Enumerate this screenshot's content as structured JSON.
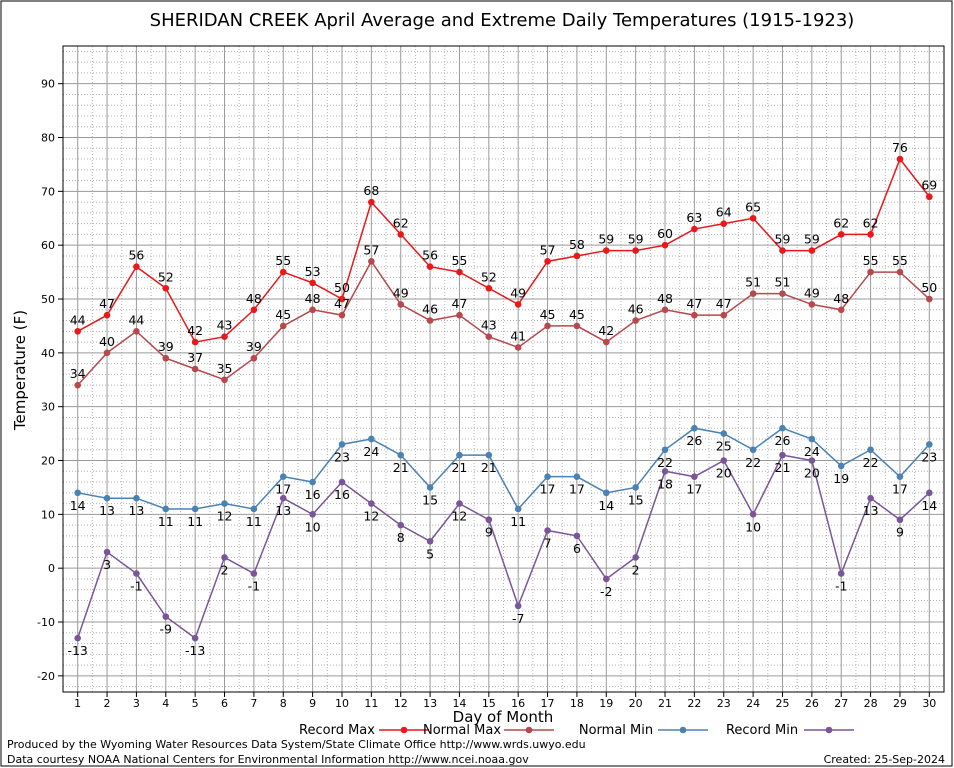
{
  "chart_data": {
    "type": "line",
    "title": "SHERIDAN CREEK April Average and Extreme Daily Temperatures (1915-1923)",
    "xlabel": "Day of Month",
    "ylabel": "Temperature (F)",
    "x": [
      1,
      2,
      3,
      4,
      5,
      6,
      7,
      8,
      9,
      10,
      11,
      12,
      13,
      14,
      15,
      16,
      17,
      18,
      19,
      20,
      21,
      22,
      23,
      24,
      25,
      26,
      27,
      28,
      29,
      30
    ],
    "xlim": [
      0.5,
      30.5
    ],
    "ylim": [
      -23,
      97
    ],
    "yticks": [
      -20,
      -10,
      0,
      10,
      20,
      30,
      40,
      50,
      60,
      70,
      80,
      90
    ],
    "grid": true,
    "legend_position": "bottom",
    "series": [
      {
        "name": "Record Max",
        "color": "#e8181b",
        "label_position": "above",
        "values": [
          44,
          47,
          56,
          52,
          42,
          43,
          48,
          55,
          53,
          50,
          68,
          62,
          56,
          55,
          52,
          49,
          57,
          58,
          59,
          59,
          60,
          63,
          64,
          65,
          59,
          59,
          62,
          62,
          76,
          69
        ]
      },
      {
        "name": "Normal Max",
        "color": "#b8484c",
        "label_position": "above",
        "values": [
          34,
          40,
          44,
          39,
          37,
          35,
          39,
          45,
          48,
          47,
          57,
          49,
          46,
          47,
          43,
          41,
          45,
          45,
          42,
          46,
          48,
          47,
          47,
          51,
          51,
          49,
          48,
          55,
          55,
          50
        ]
      },
      {
        "name": "Normal Min",
        "color": "#4a82b4",
        "label_position": "below",
        "values": [
          14,
          13,
          13,
          11,
          11,
          12,
          11,
          17,
          16,
          23,
          24,
          21,
          15,
          21,
          21,
          11,
          17,
          17,
          14,
          15,
          22,
          26,
          25,
          22,
          26,
          24,
          19,
          22,
          17,
          23
        ]
      },
      {
        "name": "Record Min",
        "color": "#7a559a",
        "label_position": "below",
        "values": [
          -13,
          3,
          -1,
          -9,
          -13,
          2,
          -1,
          13,
          10,
          16,
          12,
          8,
          5,
          12,
          9,
          -7,
          7,
          6,
          -2,
          2,
          18,
          17,
          20,
          10,
          21,
          20,
          -1,
          13,
          9,
          14
        ]
      }
    ]
  },
  "footer": {
    "line1": "Produced by the Wyoming Water Resources Data System/State Climate Office http://www.wrds.uwyo.edu",
    "line2": "Data courtesy NOAA National Centers for Environmental Information http://www.ncei.noaa.gov",
    "created": "Created:  25-Sep-2024"
  }
}
